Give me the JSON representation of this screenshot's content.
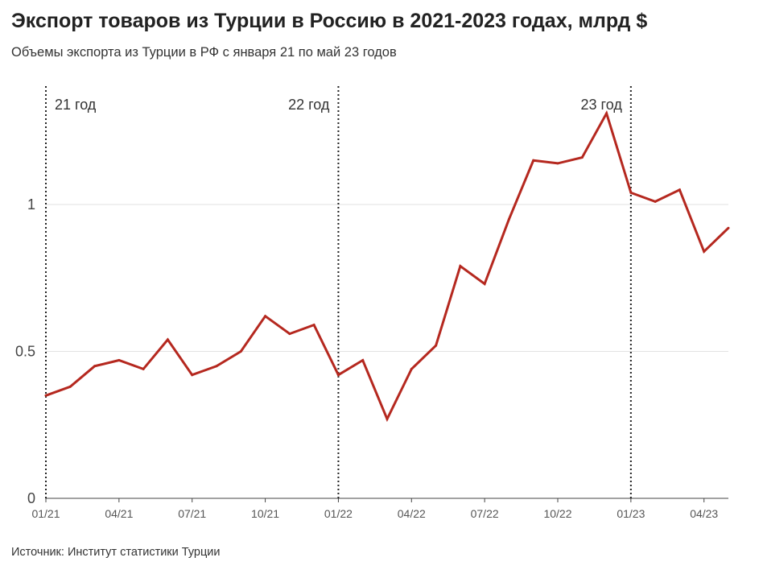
{
  "header": {
    "title": "Экспорт товаров из Турции в Россию в 2021-2023 годах, млрд $",
    "subtitle": "Объемы экспорта из Турции в РФ с января 21 по май 23 годов"
  },
  "footer": {
    "source": "Источник: Институт статистики Турции"
  },
  "colors": {
    "line": "#b5281f",
    "grid": "#e2e2e2",
    "axis": "#444444",
    "annotation_line": "#222222"
  },
  "chart_data": {
    "type": "line",
    "title": "Экспорт товаров из Турции в Россию в 2021-2023 годах, млрд $",
    "subtitle": "Объемы экспорта из Турции в РФ с января 21 по май 23 годов",
    "xlabel": "",
    "ylabel": "",
    "x": [
      "01/21",
      "02/21",
      "03/21",
      "04/21",
      "05/21",
      "06/21",
      "07/21",
      "08/21",
      "09/21",
      "10/21",
      "11/21",
      "12/21",
      "01/22",
      "02/22",
      "03/22",
      "04/22",
      "05/22",
      "06/22",
      "07/22",
      "08/22",
      "09/22",
      "10/22",
      "11/22",
      "12/22",
      "01/23",
      "02/23",
      "03/23",
      "04/23",
      "05/23"
    ],
    "series": [
      {
        "values": [
          0.35,
          0.38,
          0.45,
          0.47,
          0.44,
          0.54,
          0.42,
          0.45,
          0.5,
          0.62,
          0.56,
          0.59,
          0.42,
          0.47,
          0.27,
          0.44,
          0.52,
          0.79,
          0.73,
          0.95,
          1.15,
          1.14,
          1.16,
          1.31,
          1.04,
          1.01,
          1.05,
          0.84,
          0.92
        ]
      }
    ],
    "x_tick_labels": [
      "01/21",
      "04/21",
      "07/21",
      "10/21",
      "01/22",
      "04/22",
      "07/22",
      "10/22",
      "01/23",
      "04/23"
    ],
    "y_ticks": [
      0,
      0.5,
      1
    ],
    "y_tick_labels": [
      "0",
      "0.5",
      "1"
    ],
    "ylim": [
      0,
      1.4
    ],
    "grid": true,
    "annotations": [
      {
        "x": "01/21",
        "label": "21 год",
        "side": "right"
      },
      {
        "x": "01/22",
        "label": "22 год",
        "side": "left"
      },
      {
        "x": "01/23",
        "label": "23 год",
        "side": "left"
      }
    ]
  }
}
